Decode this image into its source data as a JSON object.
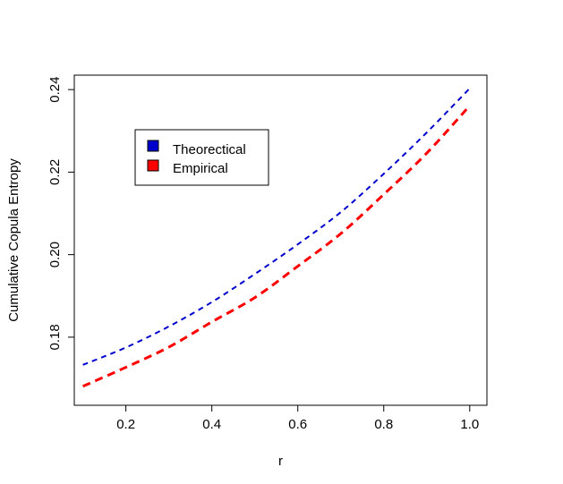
{
  "chart_data": {
    "type": "line",
    "title": "",
    "xlabel": "r",
    "ylabel": "Cumulative Copula Entropy",
    "xlim": [
      0.08,
      1.04
    ],
    "ylim": [
      0.1635,
      0.2435
    ],
    "x_ticks": [
      0.2,
      0.4,
      0.6,
      0.8,
      1.0
    ],
    "x_tick_labels": [
      "0.2",
      "0.4",
      "0.6",
      "0.8",
      "1.0"
    ],
    "y_ticks": [
      0.18,
      0.2,
      0.22,
      0.24
    ],
    "y_tick_labels": [
      "0.18",
      "0.20",
      "0.22",
      "0.24"
    ],
    "grid": false,
    "legend_position": "top-left",
    "x": [
      0.1,
      0.2,
      0.3,
      0.4,
      0.5,
      0.6,
      0.7,
      0.8,
      0.9,
      1.0
    ],
    "series": [
      {
        "name": "Theorectical",
        "color": "#0000cd",
        "line_style": "dashed",
        "values": [
          0.1733,
          0.1775,
          0.1826,
          0.1885,
          0.1953,
          0.2025,
          0.2103,
          0.2196,
          0.2296,
          0.2403
        ]
      },
      {
        "name": "Empirical",
        "color": "#ff0000",
        "line_style": "dashed",
        "values": [
          0.1681,
          0.1727,
          0.1776,
          0.1837,
          0.1896,
          0.1972,
          0.2051,
          0.2146,
          0.2246,
          0.2361
        ]
      }
    ]
  }
}
